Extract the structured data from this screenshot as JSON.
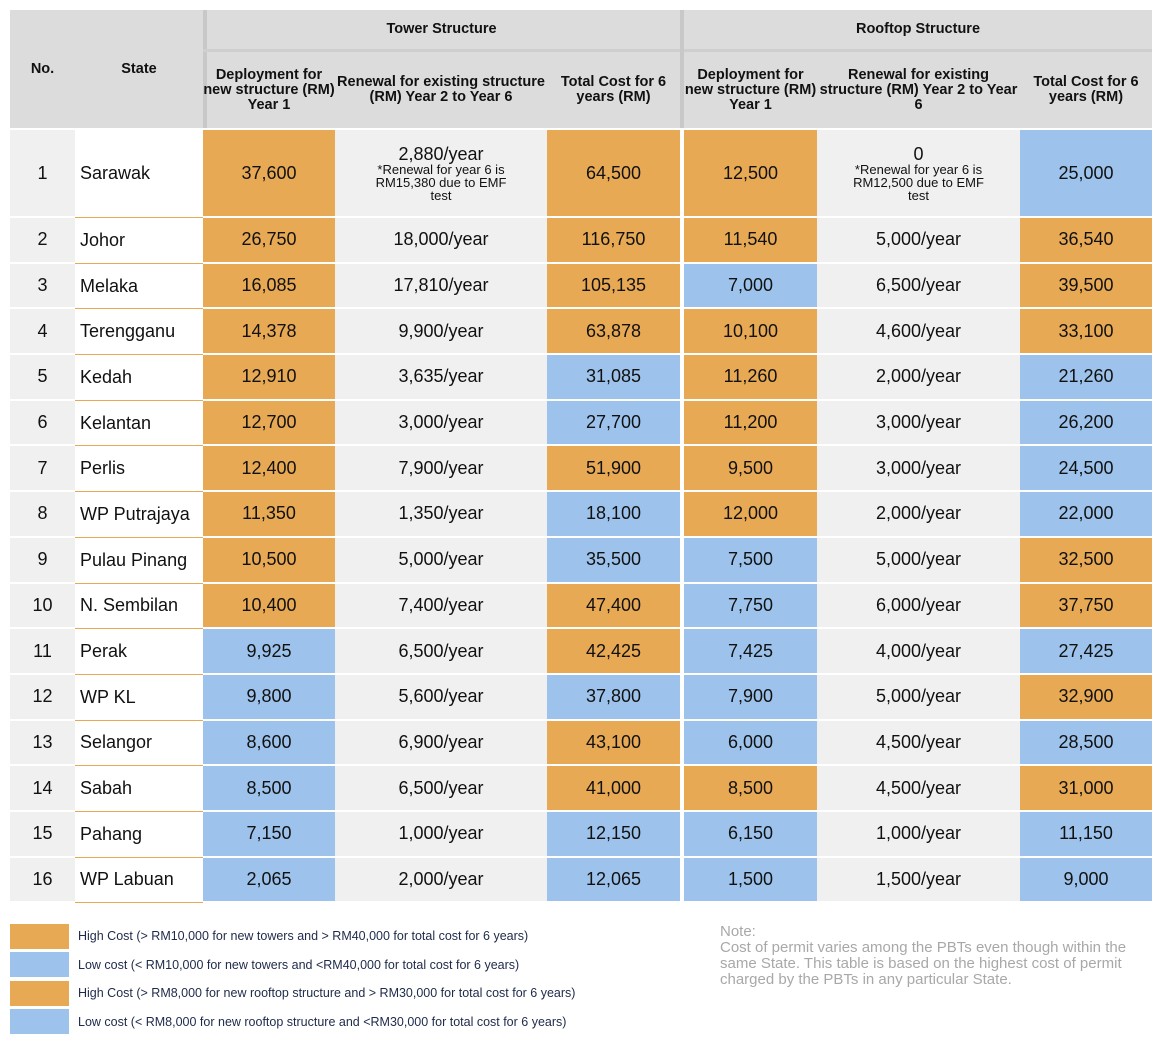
{
  "header": {
    "no": "No.",
    "state": "State",
    "tower_group": "Tower Structure",
    "rooftop_group": "Rooftop Structure",
    "deploy": "Deployment for new structure (RM) Year 1",
    "renewal": "Renewal for existing structure (RM) Year 2 to Year 6",
    "total": "Total Cost for 6 years (RM)"
  },
  "colors": {
    "high": "#e8a955",
    "low": "#9dc3ec"
  },
  "rows": [
    {
      "no": "1",
      "state": "Sarawak",
      "t_dep": "37,600",
      "t_dep_c": "O",
      "t_ren": "2,880/year",
      "t_ren_note": "*Renewal for year 6 is RM15,380 due to EMF test",
      "t_tot": "64,500",
      "t_tot_c": "O",
      "r_dep": "12,500",
      "r_dep_c": "O",
      "r_ren": "0",
      "r_ren_note": "*Renewal for year 6 is RM12,500 due to EMF test",
      "r_tot": "25,000",
      "r_tot_c": "B"
    },
    {
      "no": "2",
      "state": "Johor",
      "t_dep": "26,750",
      "t_dep_c": "O",
      "t_ren": "18,000/year",
      "t_tot": "116,750",
      "t_tot_c": "O",
      "r_dep": "11,540",
      "r_dep_c": "O",
      "r_ren": "5,000/year",
      "r_tot": "36,540",
      "r_tot_c": "O"
    },
    {
      "no": "3",
      "state": "Melaka",
      "t_dep": "16,085",
      "t_dep_c": "O",
      "t_ren": "17,810/year",
      "t_tot": "105,135",
      "t_tot_c": "O",
      "r_dep": "7,000",
      "r_dep_c": "B",
      "r_ren": "6,500/year",
      "r_tot": "39,500",
      "r_tot_c": "O"
    },
    {
      "no": "4",
      "state": "Terengganu",
      "t_dep": "14,378",
      "t_dep_c": "O",
      "t_ren": "9,900/year",
      "t_tot": "63,878",
      "t_tot_c": "O",
      "r_dep": "10,100",
      "r_dep_c": "O",
      "r_ren": "4,600/year",
      "r_tot": "33,100",
      "r_tot_c": "O"
    },
    {
      "no": "5",
      "state": "Kedah",
      "t_dep": "12,910",
      "t_dep_c": "O",
      "t_ren": "3,635/year",
      "t_tot": "31,085",
      "t_tot_c": "B",
      "r_dep": "11,260",
      "r_dep_c": "O",
      "r_ren": "2,000/year",
      "r_tot": "21,260",
      "r_tot_c": "B"
    },
    {
      "no": "6",
      "state": "Kelantan",
      "t_dep": "12,700",
      "t_dep_c": "O",
      "t_ren": "3,000/year",
      "t_tot": "27,700",
      "t_tot_c": "B",
      "r_dep": "11,200",
      "r_dep_c": "O",
      "r_ren": "3,000/year",
      "r_tot": "26,200",
      "r_tot_c": "B"
    },
    {
      "no": "7",
      "state": "Perlis",
      "t_dep": "12,400",
      "t_dep_c": "O",
      "t_ren": "7,900/year",
      "t_tot": "51,900",
      "t_tot_c": "O",
      "r_dep": "9,500",
      "r_dep_c": "O",
      "r_ren": "3,000/year",
      "r_tot": "24,500",
      "r_tot_c": "B"
    },
    {
      "no": "8",
      "state": "WP Putrajaya",
      "t_dep": "11,350",
      "t_dep_c": "O",
      "t_ren": "1,350/year",
      "t_tot": "18,100",
      "t_tot_c": "B",
      "r_dep": "12,000",
      "r_dep_c": "O",
      "r_ren": "2,000/year",
      "r_tot": "22,000",
      "r_tot_c": "B"
    },
    {
      "no": "9",
      "state": "Pulau Pinang",
      "t_dep": "10,500",
      "t_dep_c": "O",
      "t_ren": "5,000/year",
      "t_tot": "35,500",
      "t_tot_c": "B",
      "r_dep": "7,500",
      "r_dep_c": "B",
      "r_ren": "5,000/year",
      "r_tot": "32,500",
      "r_tot_c": "O"
    },
    {
      "no": "10",
      "state": "N. Sembilan",
      "t_dep": "10,400",
      "t_dep_c": "O",
      "t_ren": "7,400/year",
      "t_tot": "47,400",
      "t_tot_c": "O",
      "r_dep": "7,750",
      "r_dep_c": "B",
      "r_ren": "6,000/year",
      "r_tot": "37,750",
      "r_tot_c": "O"
    },
    {
      "no": "11",
      "state": "Perak",
      "t_dep": "9,925",
      "t_dep_c": "B",
      "t_ren": "6,500/year",
      "t_tot": "42,425",
      "t_tot_c": "O",
      "r_dep": "7,425",
      "r_dep_c": "B",
      "r_ren": "4,000/year",
      "r_tot": "27,425",
      "r_tot_c": "B"
    },
    {
      "no": "12",
      "state": "WP KL",
      "t_dep": "9,800",
      "t_dep_c": "B",
      "t_ren": "5,600/year",
      "t_tot": "37,800",
      "t_tot_c": "B",
      "r_dep": "7,900",
      "r_dep_c": "B",
      "r_ren": "5,000/year",
      "r_tot": "32,900",
      "r_tot_c": "O"
    },
    {
      "no": "13",
      "state": "Selangor",
      "t_dep": "8,600",
      "t_dep_c": "B",
      "t_ren": "6,900/year",
      "t_tot": "43,100",
      "t_tot_c": "O",
      "r_dep": "6,000",
      "r_dep_c": "B",
      "r_ren": "4,500/year",
      "r_tot": "28,500",
      "r_tot_c": "B"
    },
    {
      "no": "14",
      "state": "Sabah",
      "t_dep": "8,500",
      "t_dep_c": "B",
      "t_ren": "6,500/year",
      "t_tot": "41,000",
      "t_tot_c": "O",
      "r_dep": "8,500",
      "r_dep_c": "O",
      "r_ren": "4,500/year",
      "r_tot": "31,000",
      "r_tot_c": "O"
    },
    {
      "no": "15",
      "state": "Pahang",
      "t_dep": "7,150",
      "t_dep_c": "B",
      "t_ren": "1,000/year",
      "t_tot": "12,150",
      "t_tot_c": "B",
      "r_dep": "6,150",
      "r_dep_c": "B",
      "r_ren": "1,000/year",
      "r_tot": "11,150",
      "r_tot_c": "B"
    },
    {
      "no": "16",
      "state": "WP Labuan",
      "t_dep": "2,065",
      "t_dep_c": "B",
      "t_ren": "2,000/year",
      "t_tot": "12,065",
      "t_tot_c": "B",
      "r_dep": "1,500",
      "r_dep_c": "B",
      "r_ren": "1,500/year",
      "r_tot": "9,000",
      "r_tot_c": "B"
    }
  ],
  "legend": [
    {
      "c": "O",
      "text": "High Cost (> RM10,000 for new towers and > RM40,000 for total cost for 6 years)"
    },
    {
      "c": "B",
      "text": "Low cost (< RM10,000 for new towers and <RM40,000 for total cost for 6 years)"
    },
    {
      "c": "O",
      "text": "High Cost (> RM8,000 for new rooftop structure and > RM30,000 for total cost for 6 years)"
    },
    {
      "c": "B",
      "text": "Low cost (< RM8,000 for new rooftop structure and <RM30,000 for total cost for 6 years)"
    }
  ],
  "note": {
    "title": "Note:",
    "body": "Cost of permit varies among the PBTs even though within the same State. This table is based on the highest cost of permit charged by the PBTs in any particular State."
  }
}
